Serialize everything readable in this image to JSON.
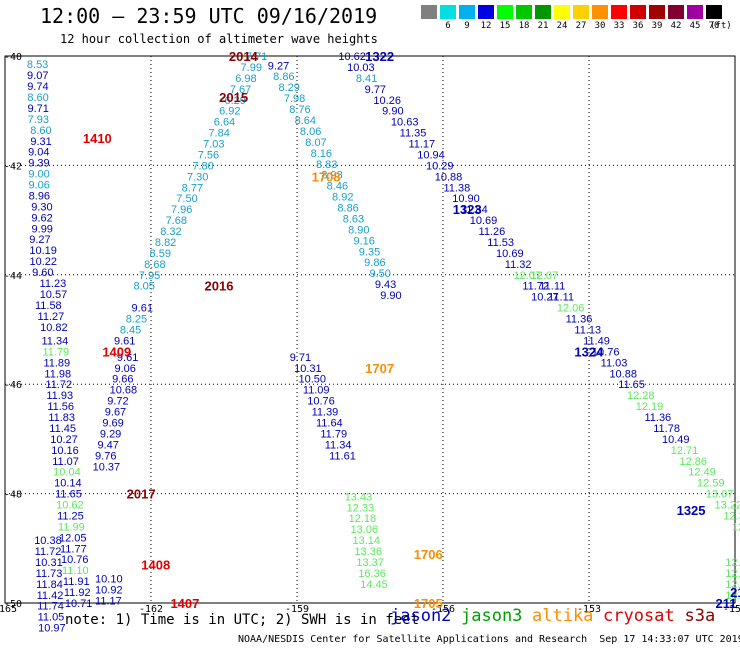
{
  "title": "12:00 – 23:59 UTC 09/16/2019",
  "subtitle": "12 hour collection of altimeter wave heights",
  "note": "note: 1) Time is in UTC; 2) SWH is in feet",
  "credit": "NOAA/NESDIS Center for Satellite Applications and Research  Sep 17 14:33:07 UTC 2019",
  "legend": {
    "unit": "(ft)",
    "bins": [
      {
        "label": "3",
        "color": "#808080"
      },
      {
        "label": "6",
        "color": "#00e0e0"
      },
      {
        "label": "9",
        "color": "#00b0f0"
      },
      {
        "label": "12",
        "color": "#0000e0"
      },
      {
        "label": "15",
        "color": "#00ff00"
      },
      {
        "label": "18",
        "color": "#00c800"
      },
      {
        "label": "21",
        "color": "#009600"
      },
      {
        "label": "24",
        "color": "#ffff00"
      },
      {
        "label": "27",
        "color": "#ffd000"
      },
      {
        "label": "30",
        "color": "#ff9000"
      },
      {
        "label": "33",
        "color": "#ff0000"
      },
      {
        "label": "36",
        "color": "#d00000"
      },
      {
        "label": "39",
        "color": "#a00000"
      },
      {
        "label": "42",
        "color": "#800030"
      },
      {
        "label": "45",
        "color": "#a000a0"
      },
      {
        "label": "70",
        "color": "#000000"
      }
    ]
  },
  "satellites": [
    {
      "name": "jason2",
      "color": "#0000c8"
    },
    {
      "name": "jason3",
      "color": "#00a000"
    },
    {
      "name": "altika",
      "color": "#ff8c00"
    },
    {
      "name": "cryosat",
      "color": "#e00000"
    },
    {
      "name": "s3a",
      "color": "#8b0000"
    }
  ],
  "map": {
    "lon_range": [
      -165,
      -150
    ],
    "lat_range": [
      -50,
      -40
    ],
    "x_ticks": [
      "-165",
      "-162",
      "-159",
      "-156",
      "-153",
      "-150"
    ],
    "y_ticks": [
      "-40",
      "-42",
      "-44",
      "-46",
      "-48",
      "-50"
    ]
  },
  "colors": {
    "lblue": "#1aa0c8",
    "dblue": "#0000b4",
    "lgreen": "#5ee85e",
    "red": "#e00000",
    "orange": "#ff8c00",
    "maroon": "#8b0000"
  },
  "tracks": [
    {
      "lon0": -164.55,
      "lat0": -40.15,
      "dlon": 0.003,
      "dlat": -0.2,
      "offs": [
        0,
        0,
        0,
        0,
        0,
        0,
        0.05,
        0.05,
        0,
        0,
        0,
        0,
        0,
        0.05,
        0.05,
        0.05,
        0,
        0,
        0,
        0.05,
        0.2,
        0.2,
        0.1,
        0.15,
        0.2
      ],
      "colors": [
        "lblue",
        "dblue",
        "dblue",
        "lblue",
        "dblue",
        "lblue",
        "lblue",
        "dblue",
        "dblue",
        "dblue",
        "lblue",
        "lblue",
        "dblue",
        "dblue",
        "dblue",
        "dblue",
        "dblue",
        "dblue",
        "dblue",
        "dblue",
        "dblue",
        "dblue",
        "dblue",
        "dblue",
        "dblue"
      ],
      "values": [
        "8.53",
        "9.07",
        "9.74",
        "8.60",
        "9.71",
        "7.93",
        "8.60",
        "9.31",
        "9.04",
        "9.39",
        "9.00",
        "9.06",
        "8.96",
        "9.30",
        "9.62",
        "9.99",
        "9.27",
        "10.19",
        "10.22",
        "9.60",
        "11.23",
        "10.57",
        "11.58",
        "11.27",
        "10.82"
      ]
    },
    {
      "lon0": -164.25,
      "lat0": -45.2,
      "dlon": 0.02,
      "dlat": -0.2,
      "offs": [
        0,
        0,
        0,
        0,
        0,
        0,
        0,
        0,
        0,
        0,
        0,
        0,
        0,
        0,
        0,
        0,
        0,
        0,
        0,
        0,
        0,
        0,
        0,
        0,
        0
      ],
      "colors": [
        "dblue",
        "lgreen",
        "dblue",
        "dblue",
        "dblue",
        "dblue",
        "dblue",
        "dblue",
        "dblue",
        "dblue",
        "dblue",
        "dblue",
        "lgreen",
        "dblue",
        "dblue",
        "lgreen",
        "dblue",
        "lgreen",
        "dblue",
        "dblue",
        "dblue",
        "lgreen",
        "dblue",
        "dblue",
        "dblue"
      ],
      "values": [
        "11.34",
        "11.79",
        "11.89",
        "11.98",
        "11.72",
        "11.93",
        "11.56",
        "11.83",
        "11.45",
        "10.27",
        "10.16",
        "11.07",
        "10.04",
        "10.14",
        "11.65",
        "10.62",
        "11.25",
        "11.99",
        "12.05",
        "11.77",
        "10.76",
        "11.10",
        "11.91",
        "11.92",
        "10.71"
      ]
    },
    {
      "lon0": -164.4,
      "lat0": -48.85,
      "dlon": 0.01,
      "dlat": -0.2,
      "offs": [
        0,
        0,
        0,
        0,
        0,
        0,
        0,
        0,
        0
      ],
      "colors": [
        "dblue",
        "dblue",
        "dblue",
        "dblue",
        "dblue",
        "dblue",
        "dblue",
        "dblue",
        "dblue"
      ],
      "values": [
        "10.38",
        "11.72",
        "10.31",
        "11.73",
        "11.84",
        "11.42",
        "11.74",
        "11.05",
        "10.97"
      ]
    },
    {
      "lon0": -162.7,
      "lat0": -45.5,
      "dlon": -0.05,
      "dlat": -0.2,
      "offs": [
        0,
        0,
        0,
        0,
        0,
        0,
        0,
        0,
        0,
        0,
        0
      ],
      "colors": [
        "dblue",
        "dblue",
        "dblue",
        "dblue",
        "dblue",
        "dblue",
        "dblue",
        "dblue",
        "dblue",
        "dblue",
        "dblue"
      ],
      "values": [
        "9.61",
        "9.06",
        "9.66",
        "10.68",
        "9.72",
        "9.67",
        "9.69",
        "9.29",
        "9.47",
        "9.76",
        "10.37"
      ]
    },
    {
      "lon0": -163.15,
      "lat0": -49.55,
      "dlon": 0.0,
      "dlat": -0.2,
      "offs": [
        0,
        0,
        0
      ],
      "colors": [
        "dblue",
        "dblue",
        "dblue"
      ],
      "values": [
        "10.10",
        "10.92",
        "11.17"
      ]
    },
    {
      "lon0": -160.05,
      "lat0": -40.0,
      "dlon": -0.11,
      "dlat": -0.2,
      "offs": [
        0,
        0,
        0,
        0,
        0,
        0,
        0,
        0,
        0,
        0,
        0,
        0,
        0,
        0,
        0,
        0,
        0,
        0,
        0,
        0,
        0,
        0
      ],
      "colors": [
        "lblue",
        "lblue",
        "lblue",
        "lblue",
        "lblue",
        "lblue",
        "lblue",
        "lblue",
        "lblue",
        "lblue",
        "lblue",
        "lblue",
        "lblue",
        "lblue",
        "lblue",
        "lblue",
        "lblue",
        "lblue",
        "lblue",
        "lblue",
        "lblue",
        "lblue"
      ],
      "values": [
        "7.71",
        "7.99",
        "6.98",
        "7.67",
        "6.29",
        "6.92",
        "6.64",
        "7.84",
        "7.03",
        "7.56",
        "7.80",
        "7.30",
        "8.77",
        "7.50",
        "7.96",
        "7.68",
        "8.32",
        "8.82",
        "8.59",
        "8.68",
        "7.95",
        "8.05"
      ]
    },
    {
      "lon0": -162.4,
      "lat0": -44.6,
      "dlon": -0.12,
      "dlat": -0.2,
      "offs": [
        0,
        0,
        0,
        0
      ],
      "colors": [
        "dblue",
        "lblue",
        "lblue",
        "dblue"
      ],
      "values": [
        "9.61",
        "8.25",
        "8.45",
        "9.61"
      ]
    },
    {
      "lon0": -159.6,
      "lat0": -40.17,
      "dlon": 0.11,
      "dlat": -0.2,
      "offs": [
        0,
        0,
        0,
        0,
        0,
        0,
        0,
        0,
        0,
        0,
        0,
        0,
        0,
        0,
        0,
        0,
        0,
        0,
        0,
        0,
        0,
        0
      ],
      "colors": [
        "dblue",
        "lblue",
        "lblue",
        "lblue",
        "lblue",
        "lblue",
        "lblue",
        "lblue",
        "lblue",
        "lblue",
        "lblue",
        "lblue",
        "lblue",
        "lblue",
        "lblue",
        "lblue",
        "lblue",
        "lblue",
        "lblue",
        "lblue",
        "dblue",
        "dblue"
      ],
      "values": [
        "9.27",
        "8.86",
        "8.29",
        "7.98",
        "8.76",
        "8.64",
        "8.06",
        "8.07",
        "8.16",
        "8.83",
        "8.93",
        "8.46",
        "8.92",
        "8.86",
        "8.63",
        "8.90",
        "9.16",
        "9.35",
        "9.86",
        "9.50",
        "9.43",
        "9.90"
      ]
    },
    {
      "lon0": -159.15,
      "lat0": -45.5,
      "dlon": 0.09,
      "dlat": -0.2,
      "offs": [
        0,
        0,
        0,
        0,
        0,
        0,
        0,
        0,
        0,
        0
      ],
      "colors": [
        "dblue",
        "dblue",
        "dblue",
        "dblue",
        "dblue",
        "dblue",
        "dblue",
        "dblue",
        "dblue",
        "dblue"
      ],
      "values": [
        "9.71",
        "10.31",
        "10.50",
        "11.09",
        "10.76",
        "11.39",
        "11.64",
        "11.79",
        "11.34",
        "11.61"
      ]
    },
    {
      "lon0": -158.02,
      "lat0": -48.05,
      "dlon": 0.04,
      "dlat": -0.2,
      "offs": [
        0,
        0,
        0,
        0,
        0,
        0,
        0,
        0,
        0,
        0
      ],
      "colors": [
        "lgreen",
        "lgreen",
        "lgreen",
        "lgreen",
        "lgreen",
        "lgreen",
        "lgreen",
        "lgreen",
        "lgreen",
        "lgreen"
      ],
      "values": [
        "13.43",
        "12.33",
        "12.18",
        "13.06",
        "13.14",
        "13.36",
        "13.37",
        "16.36",
        "14.45",
        ""
      ]
    },
    {
      "lon0": -158.15,
      "lat0": -40.0,
      "dlon": 0.18,
      "dlat": -0.2,
      "offs": [
        0,
        0,
        0,
        0,
        0,
        0,
        0,
        0,
        0,
        0,
        0,
        0,
        0,
        0,
        0,
        0,
        0,
        0,
        0,
        0,
        0,
        0,
        0
      ],
      "colors": [
        "dblue",
        "dblue",
        "lblue",
        "dblue",
        "dblue",
        "dblue",
        "dblue",
        "dblue",
        "dblue",
        "dblue",
        "dblue",
        "dblue",
        "dblue",
        "dblue",
        "dblue",
        "dblue",
        "dblue",
        "dblue",
        "dblue",
        "dblue",
        "lgreen",
        "dblue",
        "dblue"
      ],
      "values": [
        "10.62",
        "10.03",
        "8.41",
        "9.77",
        "10.26",
        "9.90",
        "10.63",
        "11.35",
        "11.17",
        "10.94",
        "10.29",
        "10.88",
        "11.38",
        "10.90",
        "11.84",
        "10.69",
        "11.26",
        "11.53",
        "10.69",
        "11.32",
        "12.07",
        "11.72",
        "10.27"
      ]
    },
    {
      "lon0": -154.2,
      "lat0": -44.0,
      "dlon": 0.18,
      "dlat": -0.2,
      "offs": [
        0,
        0,
        0,
        0,
        0,
        0,
        0,
        0,
        0,
        0,
        0,
        0,
        0,
        0,
        0,
        0,
        0,
        0,
        0,
        0,
        0,
        0,
        0,
        0,
        0,
        0,
        0,
        0,
        0,
        0,
        0
      ],
      "colors": [
        "lgreen",
        "dblue",
        "dblue",
        "lgreen",
        "dblue",
        "dblue",
        "dblue",
        "dblue",
        "dblue",
        "dblue",
        "dblue",
        "lgreen",
        "lgreen",
        "dblue",
        "dblue",
        "dblue",
        "lgreen",
        "lgreen",
        "lgreen",
        "lgreen",
        "lgreen",
        "lgreen",
        "lgreen",
        "lgreen",
        "lgreen",
        "lgreen",
        "lgreen",
        "lgreen",
        "lgreen",
        "lgreen",
        "lgreen"
      ],
      "values": [
        "12.07",
        "11.11",
        "11.11",
        "12.06",
        "11.36",
        "11.13",
        "11.49",
        "10.76",
        "11.03",
        "10.88",
        "11.65",
        "12.28",
        "12.19",
        "11.36",
        "11.78",
        "10.49",
        "12.71",
        "12.86",
        "12.49",
        "12.59",
        "13.07",
        "13.22",
        "12.37",
        "12.31",
        "12.91",
        "13.70",
        "12.97",
        "13.14",
        "12.18",
        "13.30",
        "14.16"
      ]
    },
    {
      "lon0": -150.2,
      "lat0": -49.25,
      "dlon": 0.0,
      "dlat": -0.2,
      "offs": [
        0,
        0,
        0,
        0
      ],
      "colors": [
        "lgreen",
        "lgreen",
        "lgreen",
        "lgreen"
      ],
      "values": [
        "12.64",
        "12.48",
        "12.17",
        "13.66"
      ]
    }
  ],
  "pass_labels": [
    {
      "text": "1410",
      "lon": -163.4,
      "lat": -41.5,
      "color": "red"
    },
    {
      "text": "1409",
      "lon": -163.0,
      "lat": -45.4,
      "color": "red"
    },
    {
      "text": "2017",
      "lon": -162.5,
      "lat": -48.0,
      "color": "maroon"
    },
    {
      "text": "1408",
      "lon": -162.2,
      "lat": -49.3,
      "color": "red"
    },
    {
      "text": "1407",
      "lon": -161.6,
      "lat": -50.0,
      "color": "red"
    },
    {
      "text": "2014",
      "lon": -160.4,
      "lat": -40.0,
      "color": "maroon"
    },
    {
      "text": "2015",
      "lon": -160.6,
      "lat": -40.75,
      "color": "maroon"
    },
    {
      "text": "2016",
      "lon": -160.9,
      "lat": -44.2,
      "color": "maroon"
    },
    {
      "text": "1708",
      "lon": -158.7,
      "lat": -42.2,
      "color": "orange"
    },
    {
      "text": "1707",
      "lon": -157.6,
      "lat": -45.7,
      "color": "orange"
    },
    {
      "text": "1706",
      "lon": -156.6,
      "lat": -49.1,
      "color": "orange"
    },
    {
      "text": "1705",
      "lon": -156.6,
      "lat": -50.0,
      "color": "orange"
    },
    {
      "text": "1322",
      "lon": -157.6,
      "lat": -40.0,
      "color": "dblue"
    },
    {
      "text": "1323",
      "lon": -155.8,
      "lat": -42.8,
      "color": "dblue"
    },
    {
      "text": "1324",
      "lon": -153.3,
      "lat": -45.4,
      "color": "dblue"
    },
    {
      "text": "1325",
      "lon": -151.2,
      "lat": -48.3,
      "color": "dblue"
    },
    {
      "text": "21",
      "lon": -150.1,
      "lat": -49.8,
      "color": "dblue"
    },
    {
      "text": "211",
      "lon": -150.4,
      "lat": -50.0,
      "color": "dblue"
    }
  ]
}
